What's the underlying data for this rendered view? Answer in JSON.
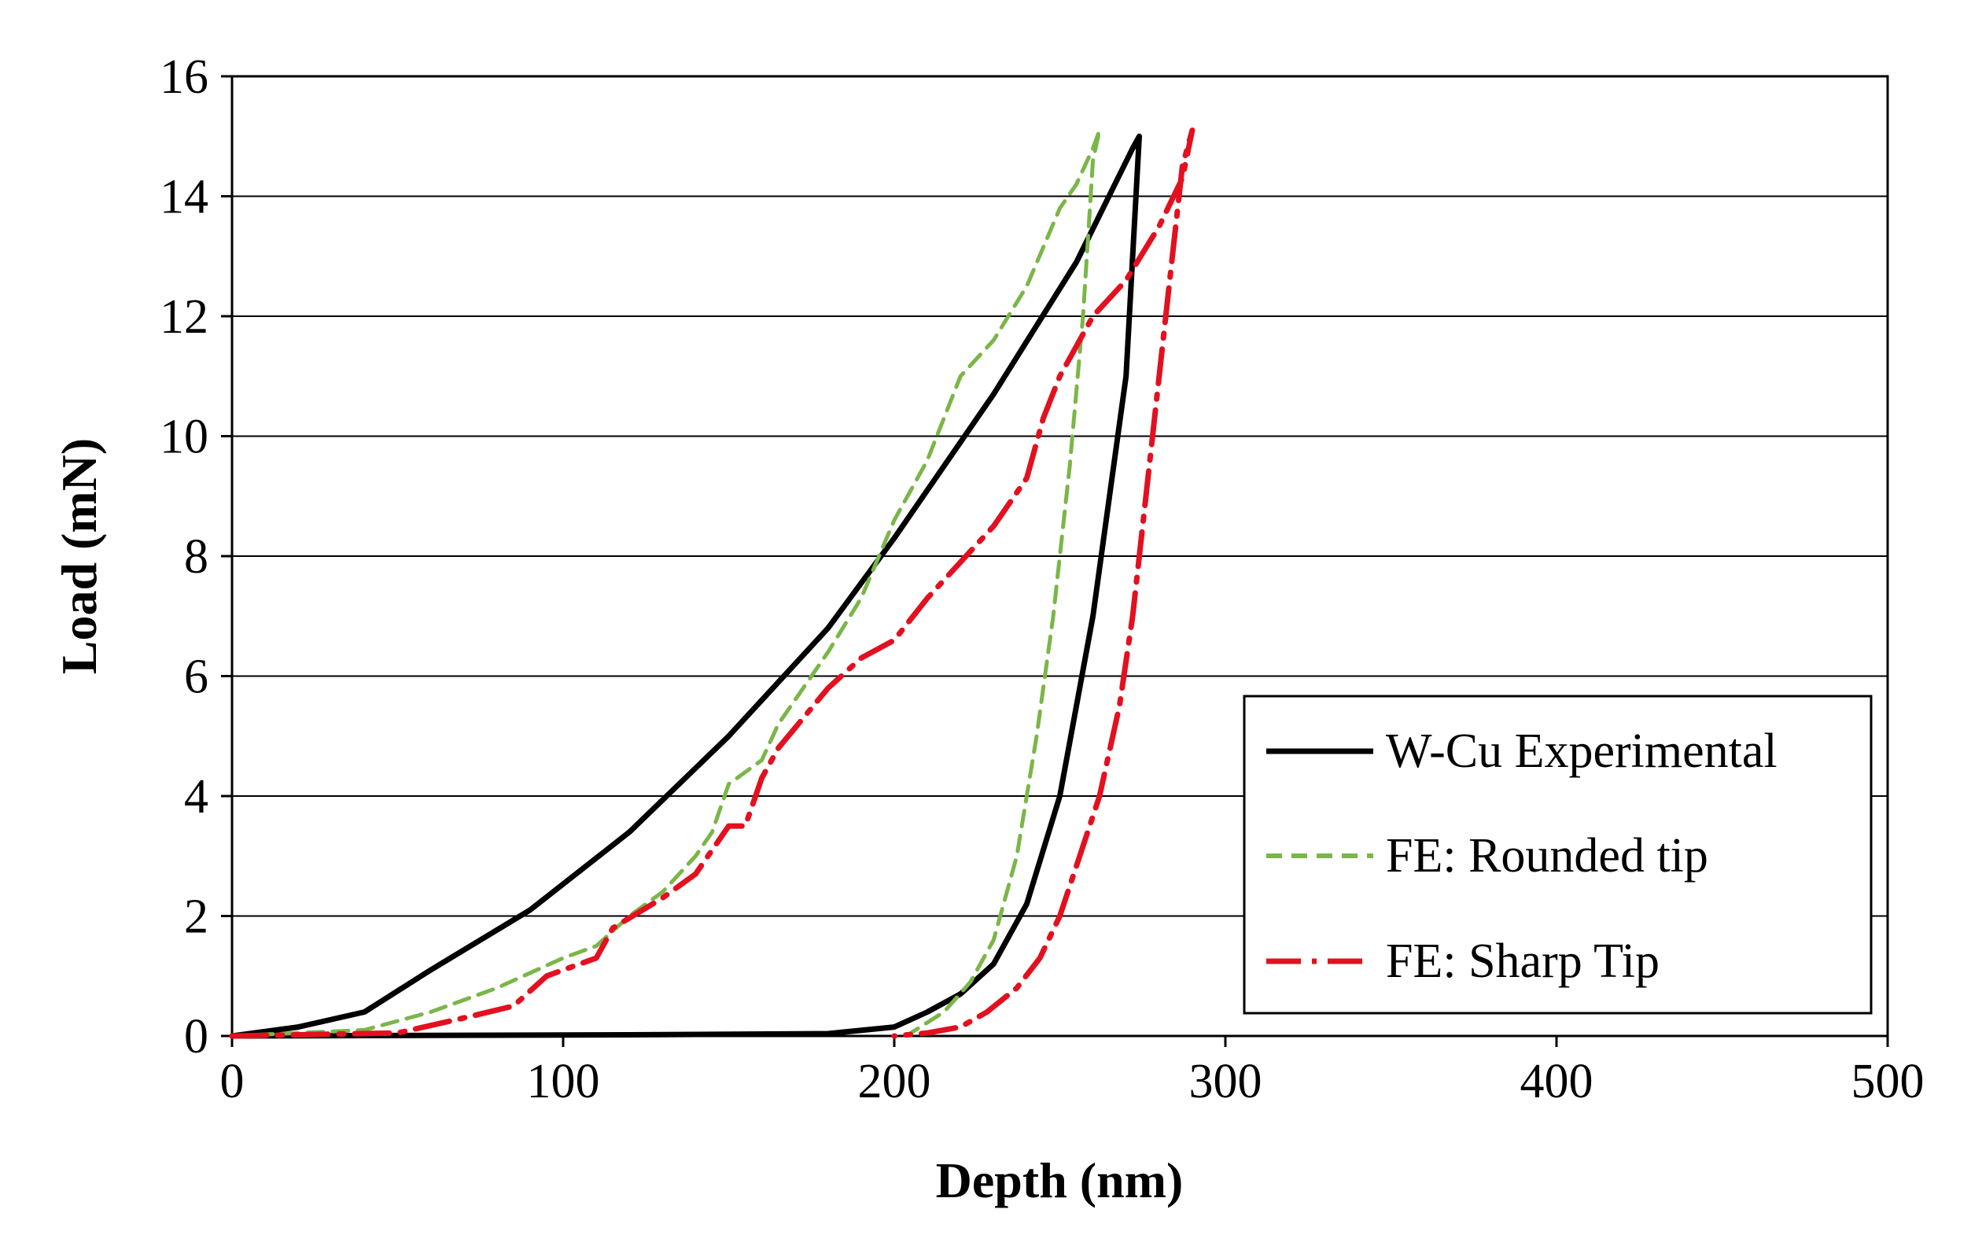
{
  "chart_data": {
    "type": "line",
    "title": "",
    "xlabel": "Depth (nm)",
    "ylabel": "Load (mN)",
    "xlim": [
      0,
      500
    ],
    "ylim": [
      0,
      16
    ],
    "xticks": [
      0,
      100,
      200,
      300,
      400,
      500
    ],
    "yticks": [
      0,
      2,
      4,
      6,
      8,
      10,
      12,
      14,
      16
    ],
    "grid": "horizontal",
    "legend_position": "bottom-right",
    "series": [
      {
        "name": "W-Cu Experimental",
        "color": "#000000",
        "style": "solid",
        "x": [
          0,
          20,
          40,
          60,
          90,
          120,
          150,
          180,
          200,
          230,
          255,
          272,
          274,
          270,
          260,
          250,
          240,
          230,
          220,
          210,
          200,
          180,
          120,
          60,
          0
        ],
        "y": [
          0,
          0.15,
          0.4,
          1.1,
          2.1,
          3.4,
          5.0,
          6.8,
          8.3,
          10.7,
          12.9,
          14.8,
          15.0,
          11.0,
          7.0,
          4.0,
          2.2,
          1.2,
          0.7,
          0.4,
          0.15,
          0.04,
          0.02,
          0.01,
          0
        ]
      },
      {
        "name": "FE: Rounded tip",
        "color": "#7ab648",
        "style": "dashed",
        "x": [
          0,
          40,
          60,
          80,
          100,
          110,
          120,
          130,
          140,
          145,
          150,
          160,
          165,
          170,
          180,
          190,
          200,
          210,
          220,
          230,
          240,
          250,
          255,
          260,
          262,
          260,
          257,
          253,
          248,
          243,
          237,
          230,
          223,
          215,
          205
        ],
        "y": [
          0,
          0.1,
          0.4,
          0.8,
          1.3,
          1.5,
          2.0,
          2.4,
          3.0,
          3.4,
          4.2,
          4.6,
          5.2,
          5.6,
          6.4,
          7.3,
          8.6,
          9.6,
          11.0,
          11.6,
          12.5,
          13.8,
          14.2,
          14.8,
          15.1,
          14.6,
          12.0,
          9.5,
          7.0,
          5.0,
          3.0,
          1.6,
          0.9,
          0.4,
          0.05
        ]
      },
      {
        "name": "FE: Sharp Tip",
        "color": "#e3101f",
        "style": "dashdot",
        "x": [
          0,
          50,
          70,
          85,
          95,
          100,
          110,
          115,
          130,
          140,
          150,
          155,
          160,
          165,
          180,
          190,
          200,
          210,
          220,
          230,
          240,
          245,
          250,
          260,
          270,
          280,
          287,
          290,
          287,
          284,
          280,
          276,
          272,
          268,
          262,
          256,
          250,
          244,
          237,
          228,
          220,
          210,
          200
        ],
        "y": [
          0,
          0.05,
          0.3,
          0.5,
          1.0,
          1.1,
          1.3,
          1.8,
          2.3,
          2.7,
          3.5,
          3.5,
          4.3,
          4.8,
          5.8,
          6.3,
          6.6,
          7.3,
          7.9,
          8.5,
          9.3,
          10.3,
          11.0,
          12.0,
          12.6,
          13.5,
          14.3,
          15.1,
          14.5,
          13.0,
          11.0,
          9.0,
          7.0,
          5.5,
          4.0,
          3.0,
          2.0,
          1.3,
          0.8,
          0.4,
          0.15,
          0.05,
          0
        ]
      }
    ]
  }
}
